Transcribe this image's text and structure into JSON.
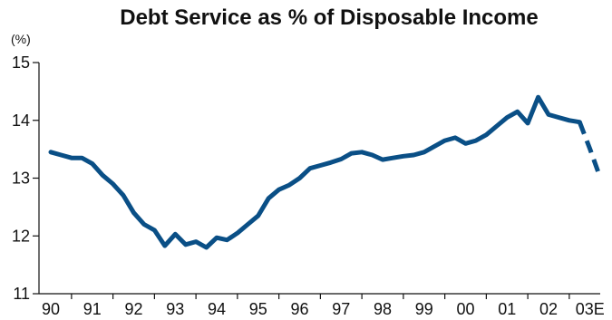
{
  "chart_data": {
    "type": "line",
    "title": "Debt Service as % of Disposable Income",
    "ylabel": "(%)",
    "xlabel": "",
    "ylim": [
      11,
      15
    ],
    "yticks": [
      11,
      12,
      13,
      14,
      15
    ],
    "xlim": [
      1990,
      2003.6
    ],
    "xtick_labels": [
      "90",
      "91",
      "92",
      "93",
      "94",
      "95",
      "96",
      "97",
      "98",
      "99",
      "00",
      "01",
      "02",
      "03E"
    ],
    "grid": false,
    "series_color": "#0a4f86",
    "series": [
      {
        "style": "solid",
        "x": [
          1990.0,
          1990.25,
          1990.5,
          1990.75,
          1991.0,
          1991.25,
          1991.5,
          1991.75,
          1992.0,
          1992.25,
          1992.5,
          1992.75,
          1993.0,
          1993.25,
          1993.5,
          1993.75,
          1994.0,
          1994.25,
          1994.5,
          1994.75,
          1995.0,
          1995.25,
          1995.5,
          1995.75,
          1996.0,
          1996.25,
          1996.5,
          1996.75,
          1997.0,
          1997.25,
          1997.5,
          1997.75,
          1998.0,
          1998.25,
          1998.5,
          1998.75,
          1999.0,
          1999.25,
          1999.5,
          1999.75,
          2000.0,
          2000.25,
          2000.5,
          2000.75,
          2001.0,
          2001.25,
          2001.5,
          2001.75,
          2002.0,
          2002.25,
          2002.5,
          2002.75
        ],
        "y": [
          13.45,
          13.4,
          13.35,
          13.35,
          13.25,
          13.05,
          12.9,
          12.7,
          12.4,
          12.2,
          12.1,
          11.83,
          12.03,
          11.85,
          11.9,
          11.8,
          11.97,
          11.93,
          12.05,
          12.2,
          12.35,
          12.65,
          12.8,
          12.88,
          13.0,
          13.17,
          13.22,
          13.27,
          13.33,
          13.43,
          13.45,
          13.4,
          13.32,
          13.35,
          13.38,
          13.4,
          13.45,
          13.55,
          13.65,
          13.7,
          13.6,
          13.65,
          13.75,
          13.9,
          14.05,
          14.15,
          13.95,
          14.4,
          14.1,
          14.05,
          14.0,
          13.97
        ]
      },
      {
        "style": "dashed",
        "label": "03E",
        "x": [
          2002.75,
          2003.0,
          2003.25
        ],
        "y": [
          13.97,
          13.5,
          13.0
        ]
      }
    ]
  }
}
